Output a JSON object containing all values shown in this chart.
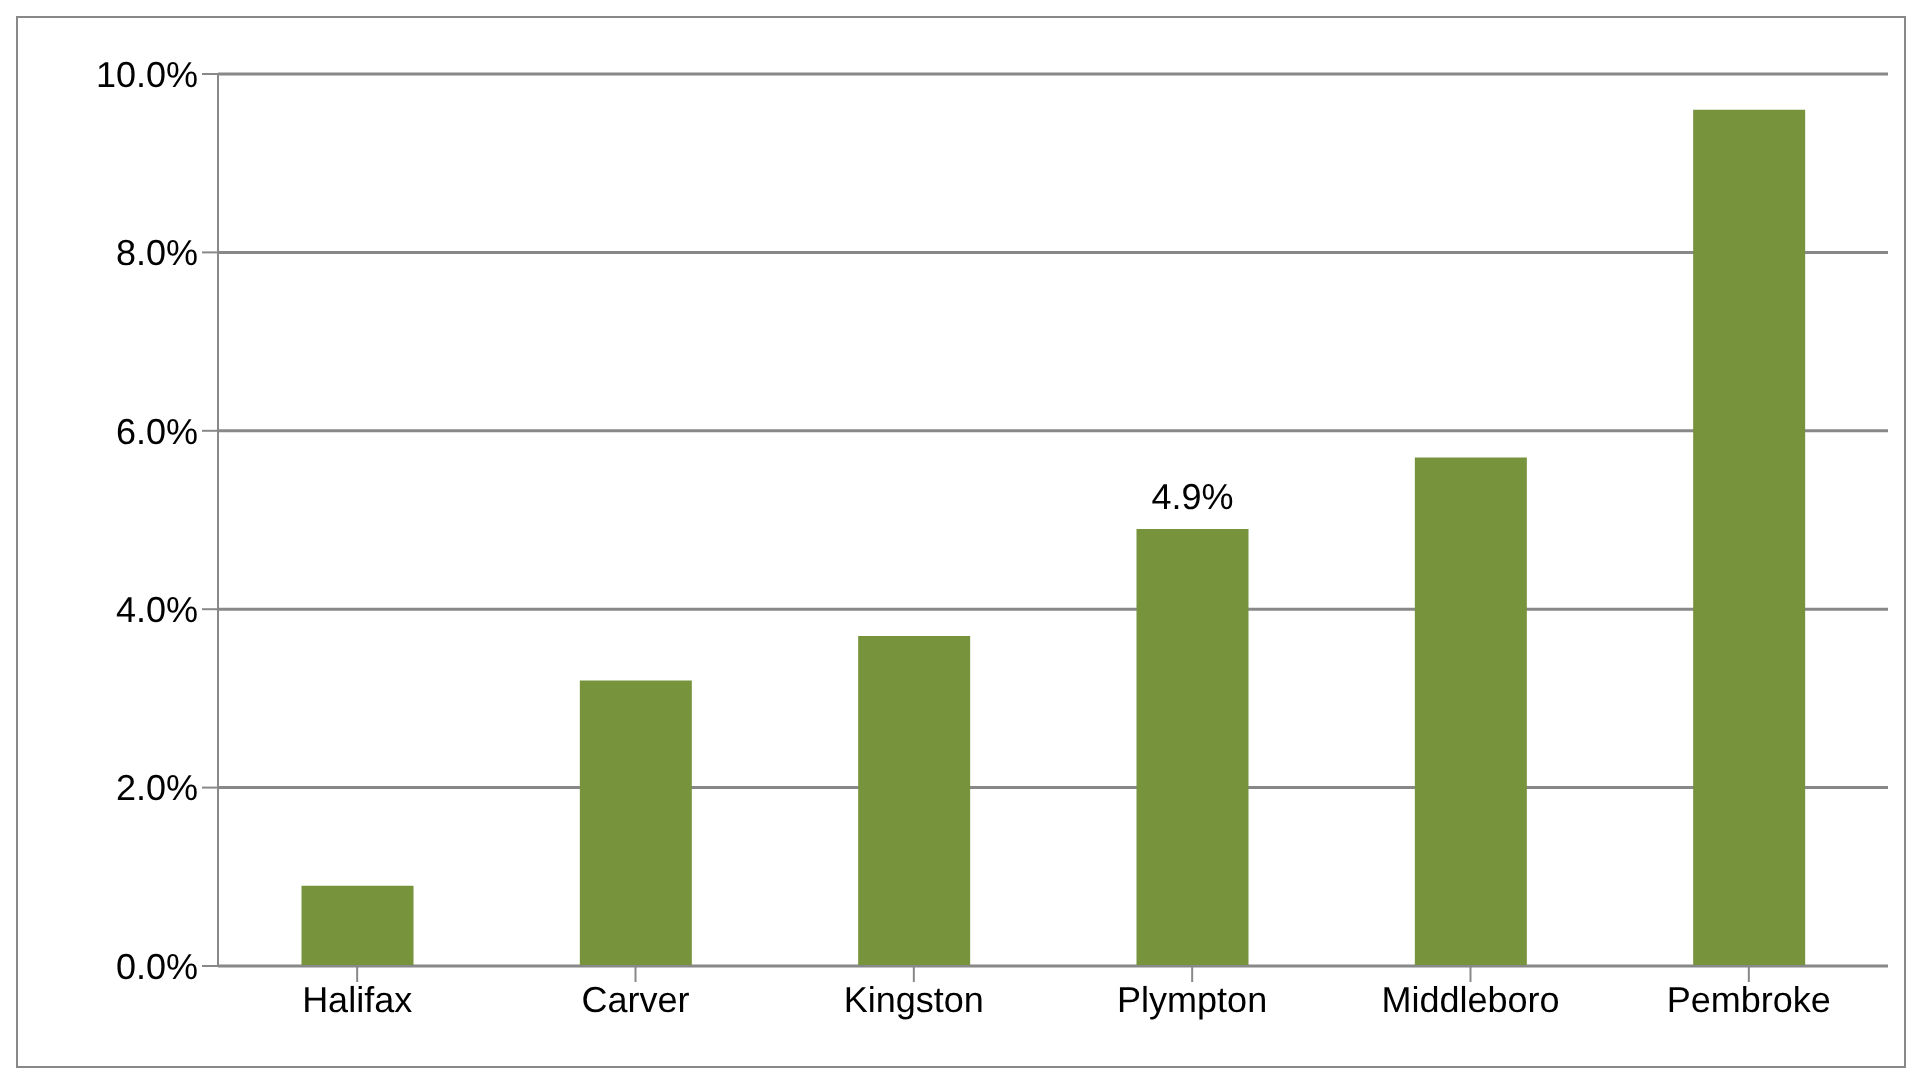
{
  "chart_data": {
    "type": "bar",
    "categories": [
      "Halifax",
      "Carver",
      "Kingston",
      "Plympton",
      "Middleboro",
      "Pembroke"
    ],
    "values": [
      0.9,
      3.2,
      3.7,
      4.9,
      5.7,
      9.6
    ],
    "value_labels": [
      null,
      null,
      null,
      "4.9%",
      null,
      null
    ],
    "color": "#77933c",
    "ylim": [
      0,
      10
    ],
    "yticks": [
      {
        "value": 0,
        "label": "0.0%"
      },
      {
        "value": 2,
        "label": "2.0%"
      },
      {
        "value": 4,
        "label": "4.0%"
      },
      {
        "value": 6,
        "label": "6.0%"
      },
      {
        "value": 8,
        "label": "8.0%"
      },
      {
        "value": 10,
        "label": "10.0%"
      }
    ],
    "grid": "y"
  }
}
